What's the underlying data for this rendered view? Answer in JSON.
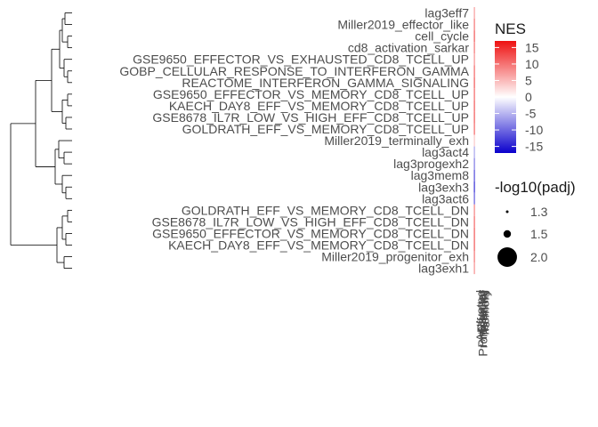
{
  "chart_data": {
    "type": "dotplot",
    "row_labels": [
      "lag3eff7",
      "Miller2019_effector_like",
      "cell_cycle",
      "cd8_activation_sarkar",
      "GSE9650_EFFECTOR_VS_EXHAUSTED_CD8_TCELL_UP",
      "GOBP_CELLULAR_RESPONSE_TO_INTERFERON_GAMMA",
      "REACTOME_INTERFERON_GAMMA_SIGNALING",
      "GSE9650_EFFECTOR_VS_MEMORY_CD8_TCELL_UP",
      "KAECH_DAY8_EFF_VS_MEMORY_CD8_TCELL_UP",
      "GSE8678_IL7R_LOW_VS_HIGH_EFF_CD8_TCELL_UP",
      "GOLDRATH_EFF_VS_MEMORY_CD8_TCELL_UP",
      "Miller2019_terminally_exh",
      "lag3act4",
      "lag3progexh2",
      "lag3mem8",
      "lag3exh3",
      "lag3act6",
      "GOLDRATH_EFF_VS_MEMORY_CD8_TCELL_DN",
      "GSE8678_IL7R_LOW_VS_HIGH_EFF_CD8_TCELL_DN",
      "GSE9650_EFFECTOR_VS_MEMORY_CD8_TCELL_DN",
      "KAECH_DAY8_EFF_VS_MEMORY_CD8_TCELL_DN",
      "Miller2019_progenitor_exh",
      "lag3exh1"
    ],
    "nes": [
      7,
      10,
      12,
      10,
      8,
      11,
      12,
      11,
      12,
      12,
      11,
      4,
      -6,
      -9,
      -12,
      -14,
      -11,
      9,
      11,
      12,
      12,
      10,
      8
    ],
    "column_labels": [
      "Activated",
      "Effector",
      "Progenitor",
      "Proliferating",
      "Terminal",
      "Memory"
    ],
    "legend_color": {
      "title": "NES",
      "ticks": [
        15,
        10,
        5,
        0,
        -5,
        -10,
        -15
      ],
      "range": [
        -17,
        17
      ],
      "low_color": "#0a00cc",
      "mid_color": "#ffffff",
      "high_color": "#ee1111"
    },
    "legend_size": {
      "title": "-log10(padj)",
      "labels": [
        "1.3",
        "1.5",
        "2.0"
      ],
      "values": [
        1.3,
        1.5,
        2.0
      ]
    },
    "dendrogram": "row clustering tree (left)"
  }
}
